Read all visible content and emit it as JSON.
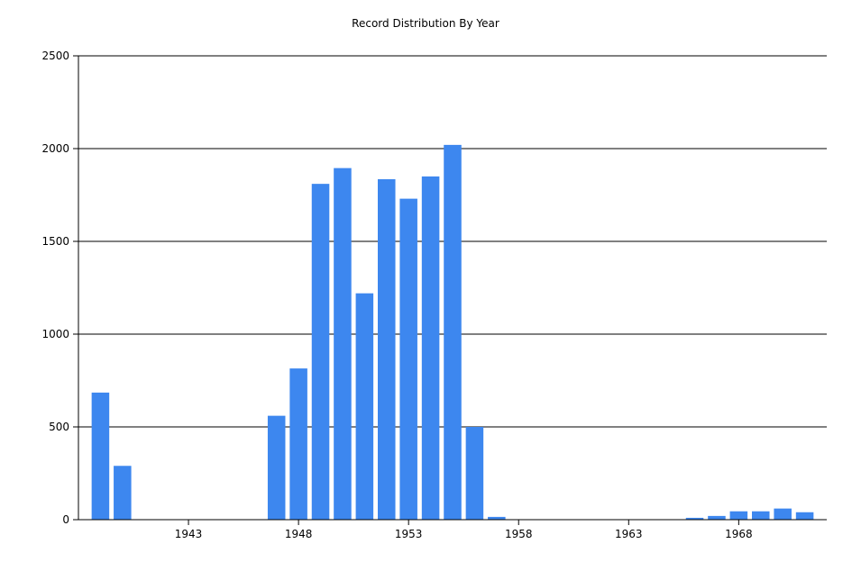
{
  "chart_data": {
    "type": "bar",
    "title": "Record Distribution By Year",
    "xlabel": "",
    "ylabel": "",
    "x": [
      1939,
      1940,
      1947,
      1948,
      1949,
      1950,
      1951,
      1952,
      1953,
      1954,
      1955,
      1956,
      1957,
      1966,
      1967,
      1968,
      1969,
      1970,
      1971
    ],
    "values": [
      685,
      290,
      560,
      815,
      1810,
      1895,
      1220,
      1835,
      1730,
      1850,
      2020,
      500,
      15,
      10,
      20,
      45,
      45,
      60,
      40
    ],
    "xlim": [
      1938,
      1972
    ],
    "ylim": [
      0,
      2500
    ],
    "yticks": [
      0,
      500,
      1000,
      1500,
      2000,
      2500
    ],
    "xticks": [
      1943,
      1948,
      1953,
      1958,
      1963,
      1968
    ],
    "bar_color": "#3d87ef",
    "grid": "horizontal",
    "legend": "none"
  }
}
